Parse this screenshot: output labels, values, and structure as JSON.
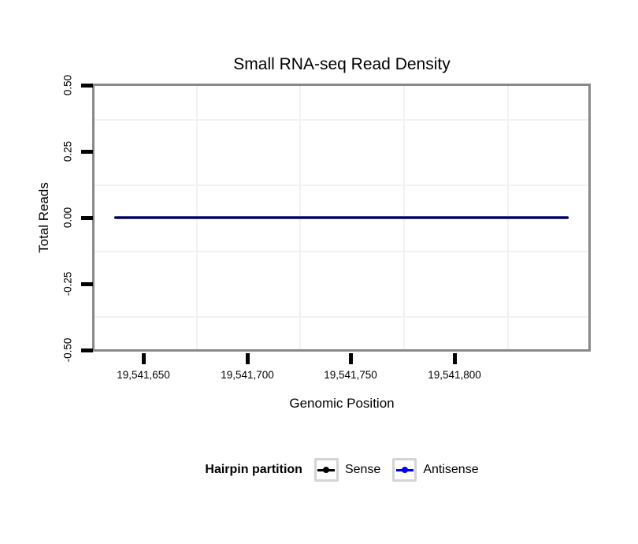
{
  "figure_title": "Small RNA-seq Read Density",
  "x_axis": {
    "label": "Genomic Position",
    "tick_labels": [
      "19,541,650",
      "19,541,700",
      "19,541,750",
      "19,541,800"
    ]
  },
  "y_axis": {
    "label": "Total Reads",
    "tick_labels": [
      "0.50",
      "0.25",
      "0.00",
      "-0.25",
      "-0.50"
    ]
  },
  "legend": {
    "title": "Hairpin partition",
    "items": [
      {
        "label": "Sense",
        "color": "#000000"
      },
      {
        "label": "Antisense",
        "color": "#0000EE"
      }
    ]
  },
  "colors": {
    "panel_border": "#898989",
    "minor_grid": "#F2F2F2",
    "axis_tick": "#000000",
    "sense_line": "#000000",
    "antisense_line": "#0000EE"
  },
  "chart_data": {
    "type": "line",
    "title": "Small RNA-seq Read Density",
    "xlabel": "Genomic Position",
    "ylabel": "Total Reads",
    "xlim": [
      19541626,
      19541866
    ],
    "ylim": [
      -0.5,
      0.5
    ],
    "x_ticks": [
      19541650,
      19541700,
      19541750,
      19541800
    ],
    "y_ticks": [
      0.5,
      0.25,
      0.0,
      -0.25,
      -0.5
    ],
    "grid": "minor gridlines only, light gray",
    "legend_position": "bottom",
    "legend_title": "Hairpin partition",
    "series": [
      {
        "name": "Sense",
        "color": "#000000",
        "x": [
          19541636,
          19541855
        ],
        "values": [
          0,
          0
        ]
      },
      {
        "name": "Antisense",
        "color": "#0000EE",
        "x": [
          19541636,
          19541855
        ],
        "values": [
          0,
          0
        ]
      }
    ]
  }
}
